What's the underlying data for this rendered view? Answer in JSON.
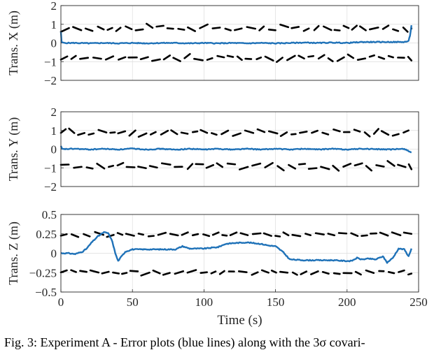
{
  "chart_data": [
    {
      "type": "line",
      "ylabel": "Trans.  X (m)",
      "xlabel": "",
      "xlim": [
        0,
        250
      ],
      "ylim": [
        -2,
        2
      ],
      "yticks": [
        "2",
        "1",
        "0",
        "−1",
        "−2"
      ],
      "ytick_values": [
        2,
        1,
        0,
        -1,
        -2
      ],
      "xticks": [],
      "grid": true,
      "series": [
        {
          "role": "error",
          "color": "#1f72b8",
          "x": [
            0,
            0.5,
            2,
            10,
            20,
            30,
            40,
            50,
            60,
            70,
            80,
            90,
            100,
            110,
            120,
            130,
            140,
            150,
            160,
            170,
            180,
            190,
            200,
            210,
            220,
            230,
            240,
            243,
            244,
            245
          ],
          "y": [
            0.6,
            0.05,
            0.0,
            0.0,
            -0.02,
            0.0,
            -0.02,
            0.0,
            -0.02,
            0.0,
            0.0,
            -0.02,
            0.0,
            -0.02,
            0.0,
            -0.02,
            0.0,
            -0.02,
            0.0,
            0.02,
            0.0,
            0.02,
            0.0,
            0.05,
            0.05,
            0.05,
            0.05,
            0.1,
            0.4,
            0.95
          ]
        },
        {
          "role": "bound-upper",
          "color": "#000000",
          "x_range": [
            0,
            245
          ],
          "mean": 0.8,
          "amp": 0.12
        },
        {
          "role": "bound-lower",
          "color": "#000000",
          "x_range": [
            0,
            245
          ],
          "mean": -0.8,
          "amp": 0.12
        }
      ]
    },
    {
      "type": "line",
      "ylabel": "Trans.  Y (m)",
      "xlabel": "",
      "xlim": [
        0,
        250
      ],
      "ylim": [
        -2,
        2
      ],
      "yticks": [
        "2",
        "1",
        "0",
        "−1",
        "−2"
      ],
      "ytick_values": [
        2,
        1,
        0,
        -1,
        -2
      ],
      "xticks": [],
      "grid": true,
      "series": [
        {
          "role": "error",
          "color": "#1f72b8",
          "x": [
            0,
            1,
            10,
            20,
            30,
            40,
            50,
            60,
            70,
            80,
            90,
            100,
            110,
            120,
            130,
            140,
            150,
            160,
            170,
            180,
            190,
            200,
            210,
            220,
            230,
            240,
            245
          ],
          "y": [
            0.15,
            0.0,
            0.02,
            -0.02,
            0.02,
            -0.02,
            0.03,
            -0.02,
            0.02,
            -0.03,
            0.02,
            -0.02,
            0.02,
            -0.02,
            0.02,
            -0.02,
            0.02,
            -0.02,
            0.02,
            -0.02,
            0.02,
            -0.02,
            0.02,
            0.0,
            -0.02,
            0.02,
            -0.18
          ]
        },
        {
          "role": "bound-upper",
          "color": "#000000",
          "x_range": [
            0,
            245
          ],
          "mean": 0.9,
          "amp": 0.15
        },
        {
          "role": "bound-lower",
          "color": "#000000",
          "x_range": [
            0,
            245
          ],
          "mean": -0.9,
          "amp": 0.15
        }
      ]
    },
    {
      "type": "line",
      "ylabel": "Trans.  Z (m)",
      "xlabel": "Time (s)",
      "xlim": [
        0,
        250
      ],
      "ylim": [
        -0.5,
        0.5
      ],
      "yticks": [
        "0.5",
        "0.25",
        "0",
        "−0.25",
        "−0.5"
      ],
      "ytick_values": [
        0.5,
        0.25,
        0,
        -0.25,
        -0.5
      ],
      "xticks": [
        "0",
        "50",
        "100",
        "150",
        "200",
        "250"
      ],
      "xtick_values": [
        0,
        50,
        100,
        150,
        200,
        250
      ],
      "grid": true,
      "series": [
        {
          "role": "error",
          "color": "#1f72b8",
          "x": [
            0,
            5,
            10,
            15,
            18,
            22,
            26,
            30,
            33,
            36,
            38,
            40,
            42,
            45,
            50,
            60,
            70,
            80,
            85,
            90,
            100,
            110,
            115,
            120,
            130,
            140,
            145,
            150,
            155,
            160,
            170,
            180,
            190,
            200,
            203,
            207,
            210,
            215,
            220,
            225,
            228,
            232,
            236,
            240,
            243,
            245
          ],
          "y": [
            0.0,
            0.0,
            -0.01,
            0.02,
            0.06,
            0.15,
            0.22,
            0.27,
            0.26,
            0.15,
            0.0,
            -0.1,
            -0.05,
            0.02,
            0.05,
            0.05,
            0.05,
            0.05,
            0.09,
            0.06,
            0.06,
            0.08,
            0.12,
            0.13,
            0.14,
            0.12,
            0.1,
            0.09,
            0.02,
            -0.08,
            -0.09,
            -0.09,
            -0.09,
            -0.1,
            -0.1,
            -0.06,
            -0.08,
            -0.07,
            -0.08,
            -0.04,
            -0.12,
            -0.06,
            0.06,
            0.05,
            -0.04,
            0.06
          ]
        },
        {
          "role": "bound-upper",
          "color": "#000000",
          "x_range": [
            0,
            245
          ],
          "mean": 0.24,
          "amp": 0.02
        },
        {
          "role": "bound-lower",
          "color": "#000000",
          "x_range": [
            0,
            245
          ],
          "mean": -0.25,
          "amp": 0.02
        }
      ]
    }
  ],
  "caption": "Fig. 3: Experiment A - Error plots (blue lines) along with the 3σ covari-"
}
